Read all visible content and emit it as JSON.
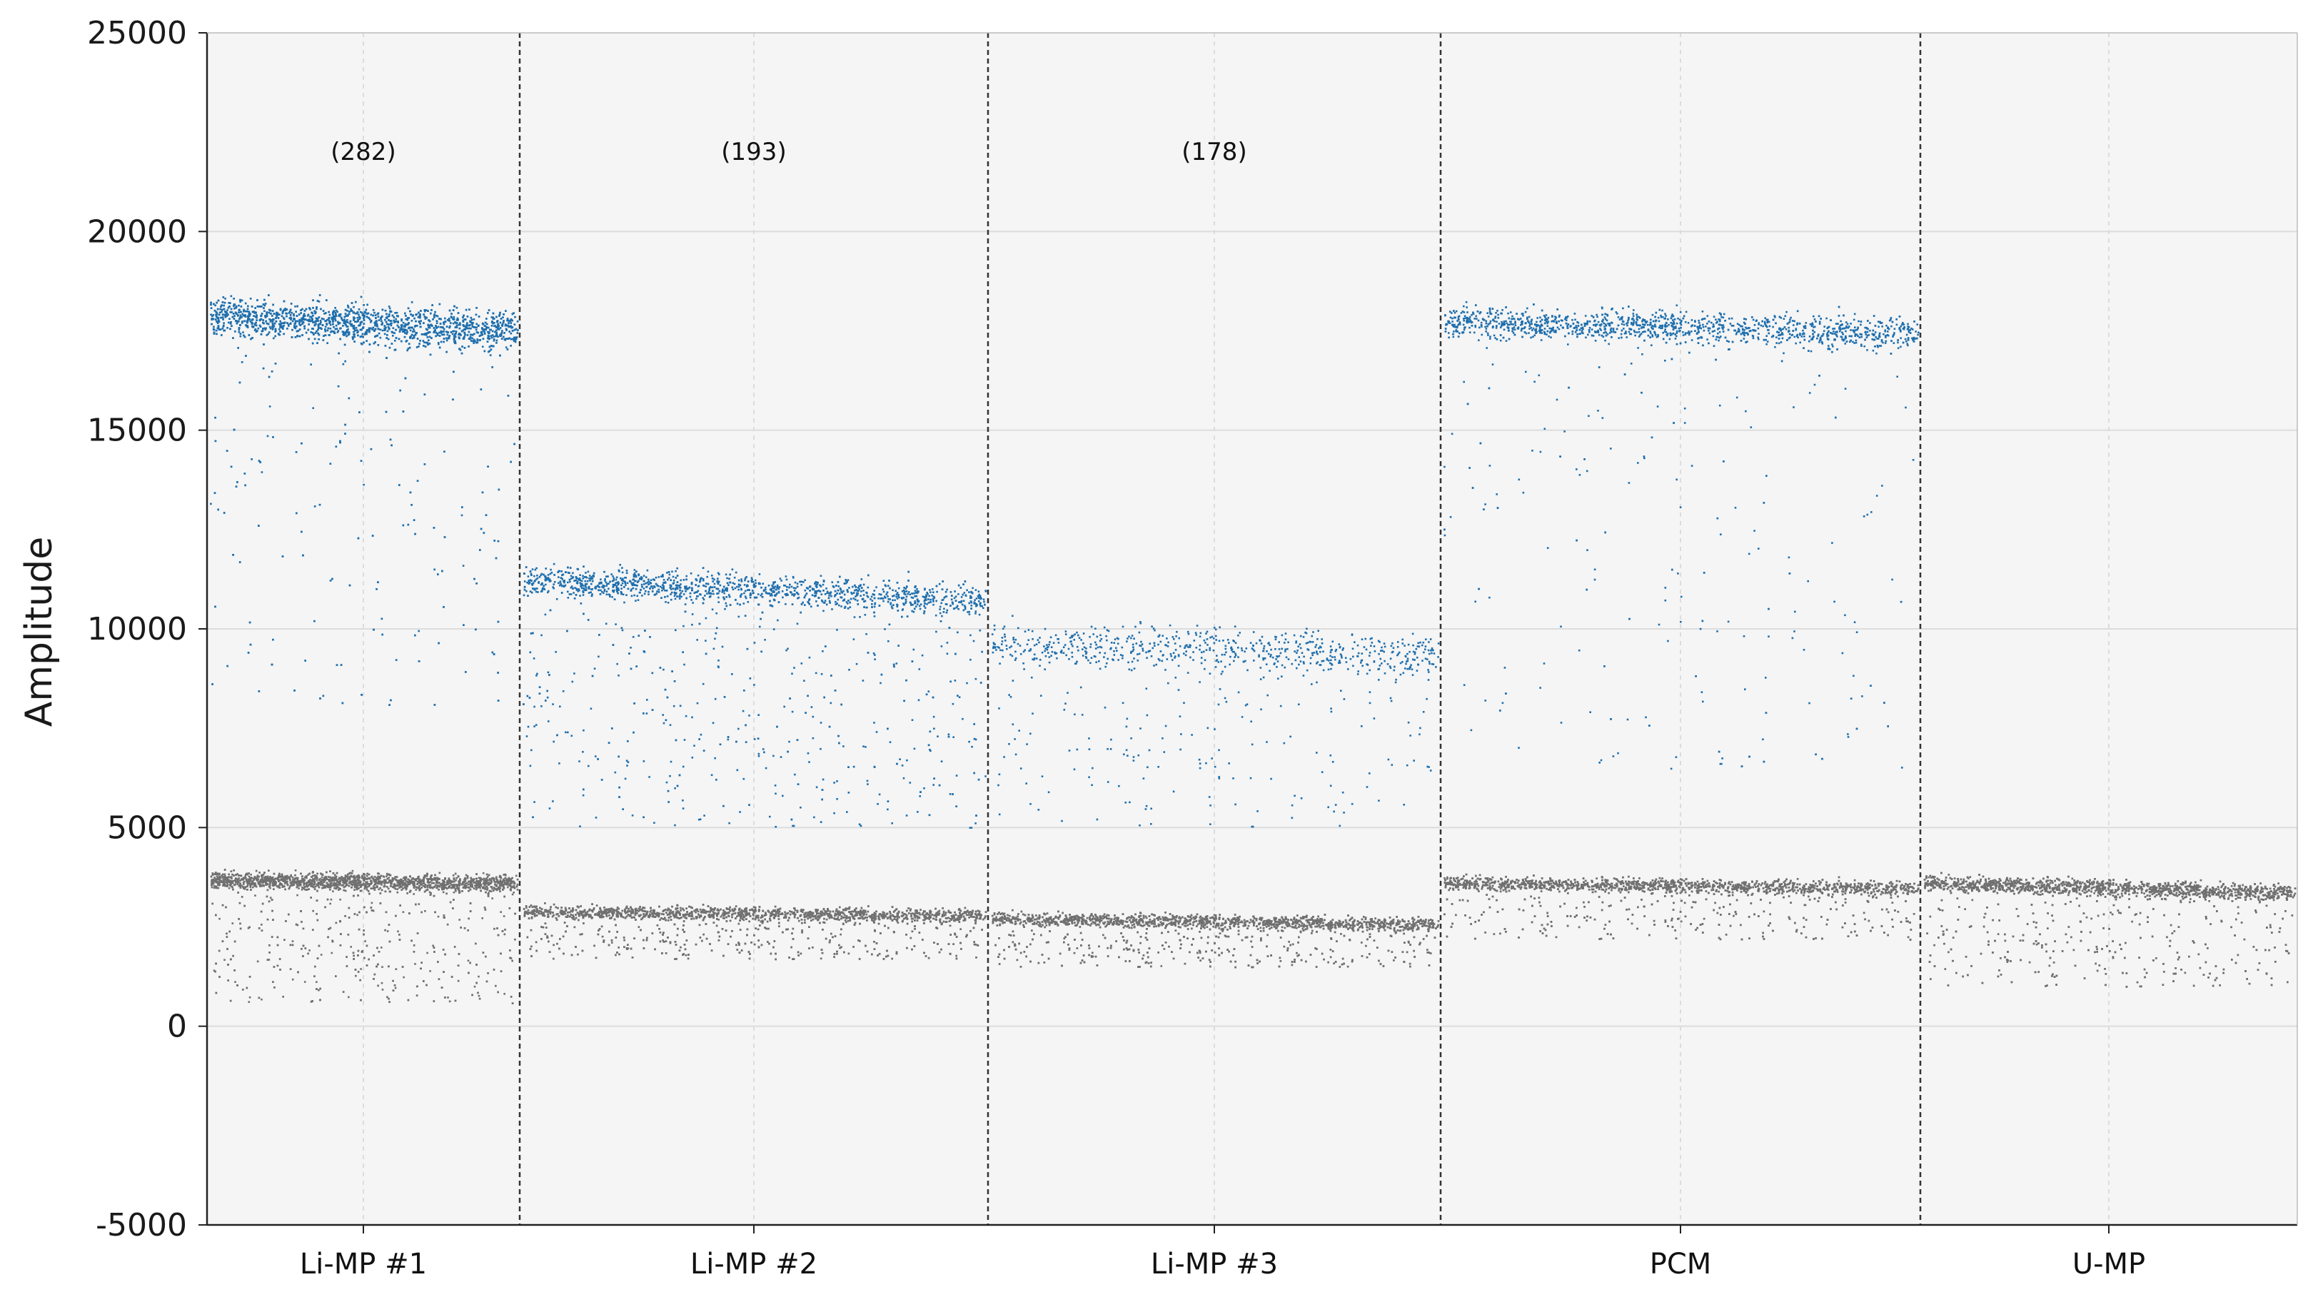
{
  "chart_data": {
    "type": "scatter",
    "title": "",
    "xlabel": "",
    "ylabel": "Amplitude",
    "ylim": [
      -5000,
      25000
    ],
    "yticks": [
      -5000,
      0,
      5000,
      10000,
      15000,
      20000,
      25000
    ],
    "grid": true,
    "wells": [
      {
        "label": "Li-MP #1",
        "count": "(282)",
        "positive": {
          "center": 17700,
          "spread": 600,
          "trend": -400,
          "n": 3200,
          "tail": 0.09,
          "tail_min": 8000
        },
        "negative": {
          "center": 3650,
          "spread": 260,
          "trend": -100,
          "n": 3800,
          "tail": 0.16,
          "tail_min": 600
        }
      },
      {
        "label": "Li-MP #2",
        "count": "(193)",
        "positive": {
          "center": 11000,
          "spread": 500,
          "trend": -500,
          "n": 2200,
          "tail": 0.24,
          "tail_min": 5000
        },
        "negative": {
          "center": 2850,
          "spread": 220,
          "trend": -100,
          "n": 4200,
          "tail": 0.18,
          "tail_min": 1700
        }
      },
      {
        "label": "Li-MP #3",
        "count": "(178)",
        "positive": {
          "center": 9500,
          "spread": 700,
          "trend": -300,
          "n": 850,
          "tail": 0.18,
          "tail_min": 5000
        },
        "negative": {
          "center": 2650,
          "spread": 220,
          "trend": -150,
          "n": 4400,
          "tail": 0.18,
          "tail_min": 1500
        }
      },
      {
        "label": "PCM",
        "count": "",
        "positive": {
          "center": 17600,
          "spread": 500,
          "trend": -300,
          "n": 1900,
          "tail": 0.12,
          "tail_min": 6500
        },
        "negative": {
          "center": 3550,
          "spread": 220,
          "trend": -150,
          "n": 4400,
          "tail": 0.15,
          "tail_min": 2200
        }
      },
      {
        "label": "U-MP",
        "count": "",
        "positive": {
          "center": 0,
          "spread": 0,
          "trend": 0,
          "n": 0,
          "tail": 0,
          "tail_min": 0
        },
        "negative": {
          "center": 3500,
          "spread": 260,
          "trend": -250,
          "n": 4200,
          "tail": 0.18,
          "tail_min": 1000
        }
      }
    ]
  },
  "colors": {
    "positive": "#1f6fad",
    "negative": "#707070",
    "plot_bg": "#f5f5f5",
    "grid": "#dcdcdc",
    "divider": "#333333",
    "axis": "#222222"
  }
}
